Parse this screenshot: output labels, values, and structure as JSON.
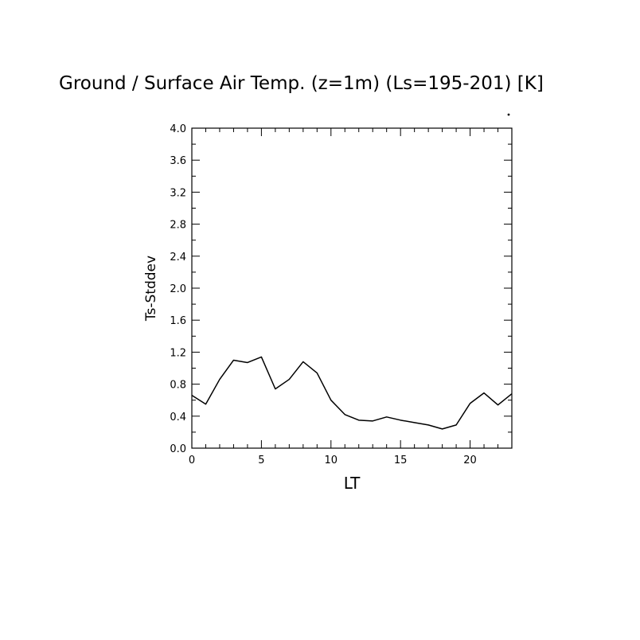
{
  "chart_data": {
    "type": "line",
    "title": "Ground / Surface Air Temp. (z=1m) (Ls=195-201) [K]",
    "xlabel": "LT",
    "ylabel": "Ts-Stddev",
    "xlim": [
      0,
      23
    ],
    "ylim": [
      0.0,
      4.0
    ],
    "x_ticks": [
      0,
      5,
      10,
      15,
      20
    ],
    "x_tick_labels": [
      "0",
      "5",
      "10",
      "15",
      "20"
    ],
    "y_ticks": [
      0.0,
      0.4,
      0.8,
      1.2,
      1.6,
      2.0,
      2.4,
      2.8,
      3.2,
      3.6,
      4.0
    ],
    "y_tick_labels": [
      "0.0",
      "0.4",
      "0.8",
      "1.2",
      "1.6",
      "2.0",
      "2.4",
      "2.8",
      "3.2",
      "3.6",
      "4.0"
    ],
    "grid": false,
    "legend": "none",
    "line_color": "#000000",
    "series": [
      {
        "x": [
          0,
          1,
          2,
          3,
          4,
          5,
          6,
          7,
          8,
          9,
          10,
          11,
          12,
          13,
          14,
          15,
          16,
          17,
          18,
          19,
          20,
          21,
          22,
          23
        ],
        "values": [
          0.66,
          0.55,
          0.86,
          1.1,
          1.07,
          1.14,
          0.74,
          0.86,
          1.08,
          0.94,
          0.6,
          0.42,
          0.35,
          0.34,
          0.39,
          0.35,
          0.32,
          0.29,
          0.24,
          0.29,
          0.56,
          0.69,
          0.54,
          0.68
        ]
      }
    ]
  }
}
